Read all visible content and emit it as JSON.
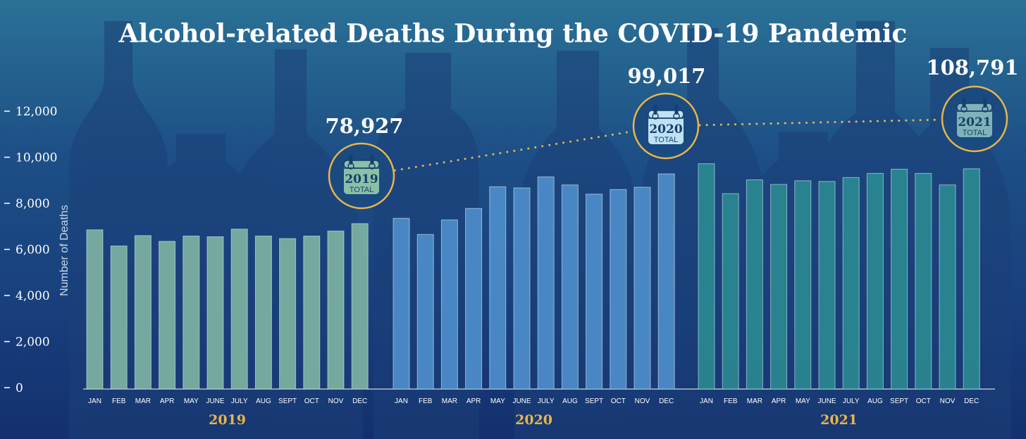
{
  "chart_data": {
    "type": "bar",
    "title": "Alcohol-related Deaths During the COVID-19 Pandemic",
    "ylabel": "Number of Deaths",
    "ylim": [
      0,
      13000
    ],
    "yticks": [
      0,
      2000,
      4000,
      6000,
      8000,
      10000,
      12000
    ],
    "ytick_labels": [
      "0",
      "2,000",
      "4,000",
      "6,000",
      "8,000",
      "10,000",
      "12,000"
    ],
    "categories": [
      "JAN",
      "FEB",
      "MAR",
      "APR",
      "MAY",
      "JUNE",
      "JULY",
      "AUG",
      "SEPT",
      "OCT",
      "NOV",
      "DEC"
    ],
    "series": [
      {
        "name": "2019",
        "color": "#7fb5a3",
        "values": [
          6850,
          6150,
          6600,
          6350,
          6580,
          6550,
          6880,
          6580,
          6470,
          6580,
          6800,
          7120
        ],
        "total_label": "78,927",
        "badge_year": "2019",
        "badge_total": "TOTAL",
        "badge_color": "#8cc0a6"
      },
      {
        "name": "2020",
        "color": "#4f8fcc",
        "values": [
          7350,
          6650,
          7280,
          7780,
          8720,
          8670,
          9150,
          8800,
          8400,
          8600,
          8700,
          9280
        ],
        "total_label": "99,017",
        "badge_year": "2020",
        "badge_total": "TOTAL",
        "badge_color": "#bfe1f3"
      },
      {
        "name": "2021",
        "color": "#2b8a92",
        "values": [
          9720,
          8420,
          9020,
          8820,
          8980,
          8950,
          9120,
          9300,
          9480,
          9300,
          8800,
          9500
        ],
        "total_label": "108,791",
        "badge_year": "2021",
        "badge_total": "TOTAL",
        "badge_color": "#7fb3b8"
      }
    ],
    "grid": false,
    "accent_color": "#e8b54a"
  }
}
